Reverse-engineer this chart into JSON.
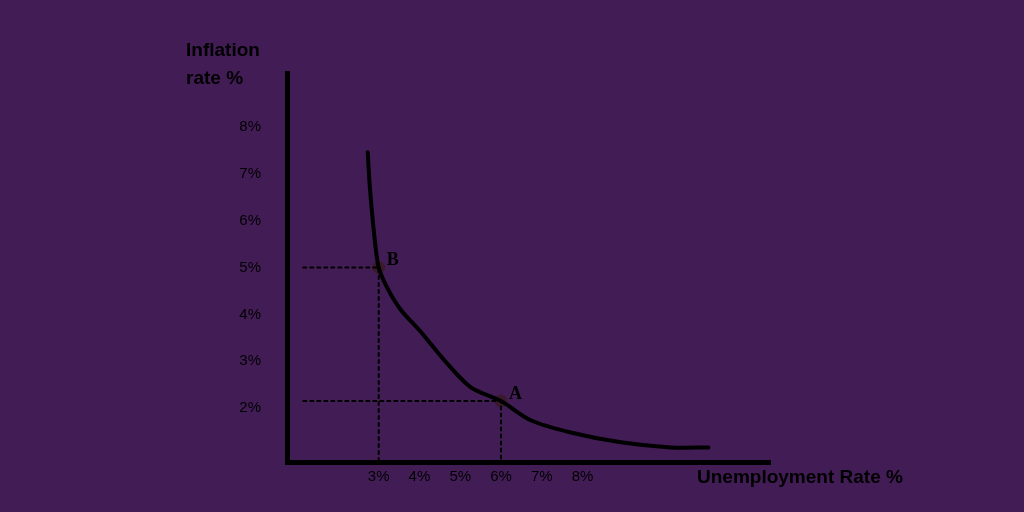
{
  "chart_data": {
    "type": "line",
    "xlabel": "Unemployment Rate %",
    "ylabel": "Inflation rate %",
    "xlim": [
      0.75,
      12.6
    ],
    "ylim": [
      0.85,
      9.15
    ],
    "xticks": [
      {
        "value": 3,
        "label": "3%"
      },
      {
        "value": 4,
        "label": "4%"
      },
      {
        "value": 5,
        "label": "5%"
      },
      {
        "value": 6,
        "label": "6%"
      },
      {
        "value": 7,
        "label": "7%"
      },
      {
        "value": 8,
        "label": "8%"
      }
    ],
    "yticks": [
      {
        "value": 2,
        "label": "2%"
      },
      {
        "value": 3,
        "label": "3%"
      },
      {
        "value": 4,
        "label": "4%"
      },
      {
        "value": 5,
        "label": "5%"
      },
      {
        "value": 6,
        "label": "6%"
      },
      {
        "value": 7,
        "label": "7%"
      },
      {
        "value": 8,
        "label": "8%"
      }
    ],
    "series": [
      {
        "color": "#000000",
        "line_style": "solid",
        "marker": "none",
        "x": [
          2.73,
          2.78,
          2.88,
          3,
          3.22,
          3.54,
          4.03,
          4.64,
          5.25,
          6,
          6.73,
          7.71,
          8.94,
          10.16,
          11.09
        ],
        "values": [
          7.46,
          6.75,
          5.78,
          5,
          4.55,
          4.1,
          3.63,
          2.99,
          2.45,
          2.15,
          1.74,
          1.48,
          1.27,
          1.16,
          1.16
        ]
      },
      {
        "color": "#000000",
        "line_style": "dotted",
        "marker": "none",
        "x": [
          1.15,
          3,
          3
        ],
        "values": [
          5,
          5,
          0.85
        ]
      },
      {
        "color": "#000000",
        "line_style": "dotted",
        "marker": "none",
        "x": [
          1.15,
          6,
          6
        ],
        "values": [
          2.15,
          2.15,
          0.85
        ]
      },
      {
        "type": "scatter",
        "color": "#3a1a2a",
        "marker": "circle",
        "x": [
          3,
          6
        ],
        "values": [
          5,
          2.15
        ]
      }
    ],
    "annotations": [
      {
        "text": "B",
        "x": 3,
        "y": 5
      },
      {
        "text": "A",
        "x": 6,
        "y": 2.15
      }
    ],
    "grid": false
  }
}
